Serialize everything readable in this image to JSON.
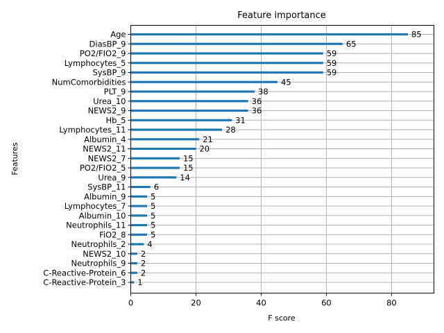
{
  "chart_data": {
    "type": "bar",
    "orientation": "horizontal",
    "title": "Feature importance",
    "xlabel": "F score",
    "ylabel": "Features",
    "xlim": [
      0,
      93
    ],
    "xticks": [
      "0",
      "20",
      "40",
      "60",
      "80"
    ],
    "grid": true,
    "bar_color": "#1f77b4",
    "categories": [
      "Age",
      "DiasBP_9",
      "PO2/FIO2_9",
      "Lymphocytes_5",
      "SysBP_9",
      "NumComorbidities",
      "PLT_9",
      "Urea_10",
      "NEWS2_9",
      "Hb_5",
      "Lymphocytes_11",
      "Albumin_4",
      "NEWS2_11",
      "NEWS2_7",
      "PO2/FIO2_5",
      "Urea_9",
      "SysBP_11",
      "Albumin_9",
      "Lymphocytes_7",
      "Albumin_10",
      "Neutrophils_11",
      "FiO2_8",
      "Neutrophils_2",
      "NEWS2_10",
      "Neutrophils_9",
      "C-Reactive-Protein_6",
      "C-Reactive-Protein_3"
    ],
    "values": [
      85,
      65,
      59,
      59,
      59,
      45,
      38,
      36,
      36,
      31,
      28,
      21,
      20,
      15,
      15,
      14,
      6,
      5,
      5,
      5,
      5,
      5,
      4,
      2,
      2,
      2,
      1
    ]
  }
}
